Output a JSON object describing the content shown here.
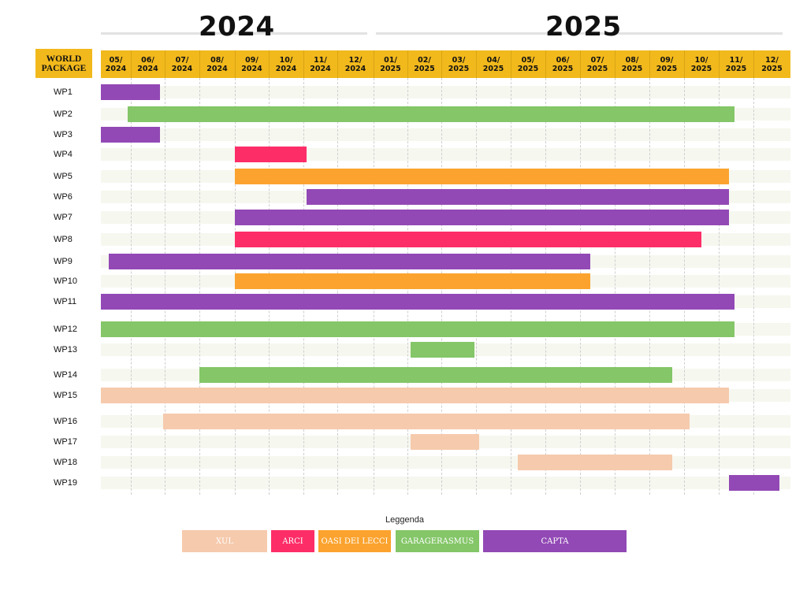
{
  "years": [
    "2024",
    "2025"
  ],
  "header_label_line1": "WORLD",
  "header_label_line2": "PACKAGE",
  "legend_title": "Leggenda",
  "colors": {
    "header": "#f2b91c",
    "XUL": "#f6caad",
    "ARCI": "#fd2d68",
    "OASI DEI LECCI": "#fba32e",
    "GARAGERASMUS": "#84c668",
    "CAPTA": "#9249b5"
  },
  "chart_data": {
    "type": "gantt",
    "months": [
      "05/\n2024",
      "06/\n2024",
      "07/\n2024",
      "08/\n2024",
      "09/\n2024",
      "10/\n2024",
      "11/\n2024",
      "12/\n2024",
      "01/\n2025",
      "02/\n2025",
      "03/\n2025",
      "04/\n2025",
      "05/\n2025",
      "06/\n2025",
      "07/\n2025",
      "08/\n2025",
      "09/\n2025",
      "10/\n2025",
      "11/\n2025",
      "12/\n2025"
    ],
    "legend": [
      "XUL",
      "ARCI",
      "OASI DEI LECCI",
      "GARAGERASMUS",
      "CAPTA"
    ],
    "tasks": [
      {
        "name": "WP1",
        "partner": "CAPTA",
        "start": 0,
        "end": 1.85
      },
      {
        "name": "WP2",
        "partner": "GARAGERASMUS",
        "start": 0.9,
        "end": 18.45
      },
      {
        "name": "WP3",
        "partner": "CAPTA",
        "start": 0,
        "end": 1.85
      },
      {
        "name": "WP4",
        "partner": "ARCI",
        "start": 4.0,
        "end": 6.1
      },
      {
        "name": "WP5",
        "partner": "OASI DEI LECCI",
        "start": 4.0,
        "end": 18.3
      },
      {
        "name": "WP6",
        "partner": "CAPTA",
        "start": 6.1,
        "end": 18.3
      },
      {
        "name": "WP7",
        "partner": "CAPTA",
        "start": 4.0,
        "end": 18.3
      },
      {
        "name": "WP8",
        "partner": "ARCI",
        "start": 4.0,
        "end": 17.5
      },
      {
        "name": "WP9",
        "partner": "CAPTA",
        "start": 0.25,
        "end": 14.3
      },
      {
        "name": "WP10",
        "partner": "OASI DEI LECCI",
        "start": 4.0,
        "end": 14.3
      },
      {
        "name": "WP11",
        "partner": "CAPTA",
        "start": 0,
        "end": 18.45
      },
      {
        "name": "WP12",
        "partner": "GARAGERASMUS",
        "start": 0,
        "end": 18.45
      },
      {
        "name": "WP13",
        "partner": "GARAGERASMUS",
        "start": 9.1,
        "end": 10.95
      },
      {
        "name": "WP14",
        "partner": "GARAGERASMUS",
        "start": 3.0,
        "end": 16.65
      },
      {
        "name": "WP15",
        "partner": "XUL",
        "start": 0,
        "end": 18.3
      },
      {
        "name": "WP16",
        "partner": "XUL",
        "start": 1.95,
        "end": 17.15
      },
      {
        "name": "WP17",
        "partner": "XUL",
        "start": 9.1,
        "end": 11.1
      },
      {
        "name": "WP18",
        "partner": "XUL",
        "start": 12.2,
        "end": 16.65
      },
      {
        "name": "WP19",
        "partner": "CAPTA",
        "start": 18.3,
        "end": 19.7
      }
    ]
  }
}
